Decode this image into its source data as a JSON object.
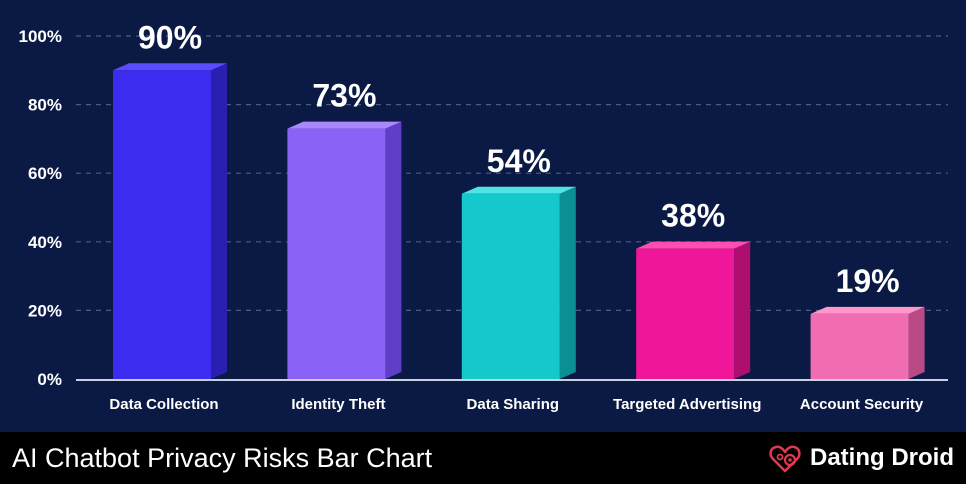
{
  "chart_data": {
    "type": "bar",
    "categories": [
      "Data Collection",
      "Identity Theft",
      "Data Sharing",
      "Targeted Advertising",
      "Account Security"
    ],
    "values": [
      90,
      73,
      54,
      38,
      19
    ],
    "value_labels": [
      "90%",
      "73%",
      "54%",
      "38%",
      "19%"
    ],
    "yticks": [
      "0%",
      "20%",
      "40%",
      "60%",
      "80%",
      "100%"
    ],
    "ylim": [
      0,
      100
    ],
    "grid": true,
    "colors": [
      {
        "front": "#3b2cf0",
        "top": "#5c4cff",
        "side": "#2a1fb0"
      },
      {
        "front": "#8a62f6",
        "top": "#a888ff",
        "side": "#5f3fc8"
      },
      {
        "front": "#14c8cc",
        "top": "#4fe3e6",
        "side": "#0c8f94"
      },
      {
        "front": "#f0169a",
        "top": "#ff4db4",
        "side": "#ad0f6f"
      },
      {
        "front": "#f06db4",
        "top": "#ff96cc",
        "side": "#b84b86"
      }
    ]
  },
  "footer": {
    "title": "AI Chatbot Privacy Risks Bar Chart",
    "brand": "Dating Droid",
    "brand_icon": "heart-gear-icon",
    "brand_color": "#e0394f"
  },
  "theme": {
    "background": "#0b1a45",
    "gridline": "#4a5a80",
    "text": "#ffffff"
  }
}
